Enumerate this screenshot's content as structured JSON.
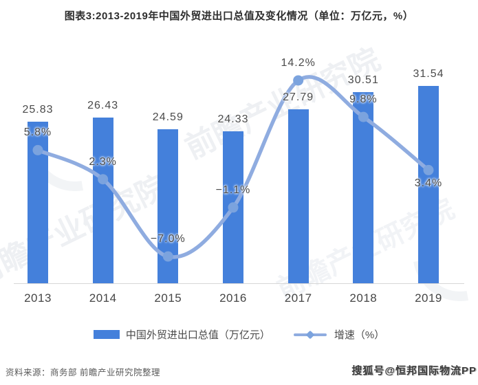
{
  "title": "图表3:2013-2019年中国外贸进出口总值及变化情况（单位：万亿元，%）",
  "chart_data": {
    "type": "bar+line",
    "categories": [
      "2013",
      "2014",
      "2015",
      "2016",
      "2017",
      "2018",
      "2019"
    ],
    "series": [
      {
        "name": "中国外贸进出口总值（万亿元）",
        "type": "bar",
        "values": [
          25.83,
          26.43,
          24.59,
          24.33,
          27.79,
          30.51,
          31.54
        ],
        "labels": [
          "25.83",
          "26.43",
          "24.59",
          "24.33",
          "27.79",
          "30.51",
          "31.54"
        ]
      },
      {
        "name": "增速（%）",
        "type": "line",
        "values": [
          5.8,
          2.3,
          -7.0,
          -1.1,
          14.2,
          9.8,
          3.4
        ],
        "labels": [
          "5.8%",
          "2.3%",
          "−7.0%",
          "−1.1%",
          "14.2%",
          "9.8%",
          "3.4%"
        ],
        "label_below": [
          false,
          false,
          false,
          false,
          false,
          false,
          true
        ]
      }
    ],
    "legend": {
      "bar_label": "中国外贸进出口总值（万亿元）",
      "line_label": "增速（%）",
      "position": "bottom"
    },
    "colors": {
      "bar": "#4480DB",
      "line": "#8FACE0",
      "marker": "#7BA3DE",
      "label_text": "#4A4A4A"
    },
    "axes": {
      "y_axis_visible": false,
      "gridlines": false,
      "x_axis_line": true
    }
  },
  "footer": {
    "source": "资料来源：商务部 前瞻产业研究院整理",
    "sohu_watermark": "搜狐号@恒邦国际物流PP"
  },
  "watermark_brand": "前瞻产业研究院"
}
